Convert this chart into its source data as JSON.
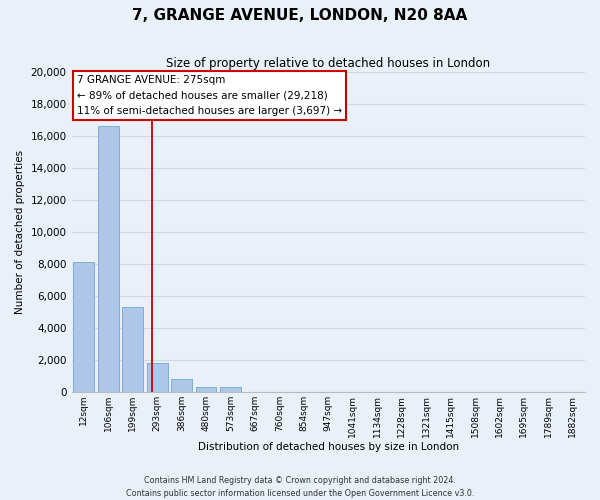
{
  "title": "7, GRANGE AVENUE, LONDON, N20 8AA",
  "subtitle": "Size of property relative to detached houses in London",
  "xlabel": "Distribution of detached houses by size in London",
  "ylabel": "Number of detached properties",
  "bar_labels": [
    "12sqm",
    "106sqm",
    "199sqm",
    "293sqm",
    "386sqm",
    "480sqm",
    "573sqm",
    "667sqm",
    "760sqm",
    "854sqm",
    "947sqm",
    "1041sqm",
    "1134sqm",
    "1228sqm",
    "1321sqm",
    "1415sqm",
    "1508sqm",
    "1602sqm",
    "1695sqm",
    "1789sqm",
    "1882sqm"
  ],
  "bar_values": [
    8100,
    16600,
    5300,
    1800,
    800,
    300,
    300,
    0,
    0,
    0,
    0,
    0,
    0,
    0,
    0,
    0,
    0,
    0,
    0,
    0,
    0
  ],
  "bar_color": "#aec6e8",
  "bar_edge_color": "#7aafd4",
  "vline_color": "#cc0000",
  "annotation_title": "7 GRANGE AVENUE: 275sqm",
  "annotation_line1": "← 89% of detached houses are smaller (29,218)",
  "annotation_line2": "11% of semi-detached houses are larger (3,697) →",
  "annotation_box_color": "#ffffff",
  "annotation_box_edge": "#cc0000",
  "ylim": [
    0,
    20000
  ],
  "yticks": [
    0,
    2000,
    4000,
    6000,
    8000,
    10000,
    12000,
    14000,
    16000,
    18000,
    20000
  ],
  "grid_color": "#d0d8e8",
  "bg_color": "#eaf0f8",
  "footer_line1": "Contains HM Land Registry data © Crown copyright and database right 2024.",
  "footer_line2": "Contains public sector information licensed under the Open Government Licence v3.0."
}
